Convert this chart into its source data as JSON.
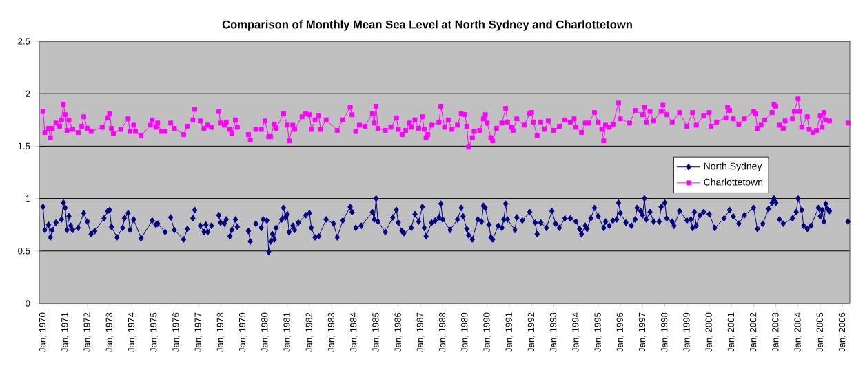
{
  "chart_data": {
    "type": "line",
    "title": "Comparison of Monthly Mean Sea Level at North Sydney and Charlottetown",
    "xlim": [
      "1969-11",
      "2006-05"
    ],
    "ylim": [
      0,
      2.5
    ],
    "yticks": [
      0,
      0.5,
      1,
      1.5,
      2,
      2.5
    ],
    "xticks": [
      {
        "value": "1970-01",
        "label": "Jan, 1970"
      },
      {
        "value": "1971-01",
        "label": "Jan, 1971"
      },
      {
        "value": "1972-01",
        "label": "Jan, 1972"
      },
      {
        "value": "1973-01",
        "label": "Jan, 1973"
      },
      {
        "value": "1974-01",
        "label": "Jan, 1974"
      },
      {
        "value": "1975-01",
        "label": "Jan, 1975"
      },
      {
        "value": "1976-01",
        "label": "Jan, 1976"
      },
      {
        "value": "1977-01",
        "label": "Jan, 1977"
      },
      {
        "value": "1978-01",
        "label": "Jan, 1978"
      },
      {
        "value": "1979-01",
        "label": "Jan, 1979"
      },
      {
        "value": "1980-01",
        "label": "Jan, 1980"
      },
      {
        "value": "1981-01",
        "label": "Jan, 1981"
      },
      {
        "value": "1982-01",
        "label": "Jan, 1982"
      },
      {
        "value": "1983-01",
        "label": "Jan, 1983"
      },
      {
        "value": "1984-01",
        "label": "Jan, 1984"
      },
      {
        "value": "1985-01",
        "label": "Jan, 1985"
      },
      {
        "value": "1986-01",
        "label": "Jan, 1986"
      },
      {
        "value": "1987-01",
        "label": "Jan, 1987"
      },
      {
        "value": "1988-01",
        "label": "Jan, 1988"
      },
      {
        "value": "1989-01",
        "label": "Jan, 1989"
      },
      {
        "value": "1990-01",
        "label": "Jan, 1990"
      },
      {
        "value": "1991-01",
        "label": "Jan, 1991"
      },
      {
        "value": "1992-01",
        "label": "Jan, 1992"
      },
      {
        "value": "1993-01",
        "label": "Jan, 1993"
      },
      {
        "value": "1994-01",
        "label": "Jan, 1994"
      },
      {
        "value": "1995-01",
        "label": "Jan, 1995"
      },
      {
        "value": "1996-01",
        "label": "Jan, 1996"
      },
      {
        "value": "1997-01",
        "label": "Jan, 1997"
      },
      {
        "value": "1998-01",
        "label": "Jan, 1998"
      },
      {
        "value": "1999-01",
        "label": "Jan, 1999"
      },
      {
        "value": "2000-01",
        "label": "Jan, 2000"
      },
      {
        "value": "2001-01",
        "label": "Jan, 2001"
      },
      {
        "value": "2002-01",
        "label": "Jan, 2002"
      },
      {
        "value": "2003-01",
        "label": "Jan, 2003"
      },
      {
        "value": "2004-01",
        "label": "Jan, 2004"
      },
      {
        "value": "2005-01",
        "label": "Jan, 2005"
      },
      {
        "value": "2006-01",
        "label": "Jan, 2006"
      }
    ],
    "grid": "y",
    "legend": "right",
    "series": [
      {
        "name": "North Sydney",
        "color": "#000080",
        "marker": "diamond",
        "x": [
          "1970-01",
          "1970-02",
          "1970-04",
          "1970-05",
          "1970-06",
          "1970-08",
          "1970-11",
          "1970-12",
          "1971-01",
          "1971-02",
          "1971-03",
          "1971-04",
          "1971-05",
          "1971-08",
          "1971-11",
          "1972-01",
          "1972-03",
          "1972-05",
          "1972-10",
          "1972-12",
          "1973-01",
          "1973-02",
          "1973-05",
          "1973-08",
          "1973-09",
          "1973-11",
          "1973-12",
          "1974-02",
          "1974-06",
          "1974-12",
          "1975-02",
          "1975-03",
          "1975-07",
          "1975-08",
          "1975-10",
          "1975-12",
          "1976-05",
          "1976-07",
          "1976-08",
          "1976-10",
          "1976-11",
          "1976-12",
          "1977-02",
          "1977-04",
          "1977-05",
          "1977-06",
          "1977-08",
          "1977-10",
          "1977-12",
          "1978-01",
          "1978-03",
          "1978-04",
          "1978-05",
          "1978-06",
          "1978-07",
          "1978-09",
          "1978-10",
          "1979-01",
          "1979-04",
          "1979-05",
          "1979-07",
          "1979-08",
          "1979-11",
          "1979-12",
          "1980-02",
          "1980-03",
          "1980-04",
          "1980-05",
          "1980-06",
          "1980-07",
          "1980-10",
          "1980-11",
          "1980-12",
          "1981-01",
          "1981-02",
          "1981-04",
          "1981-05",
          "1981-07",
          "1981-11",
          "1982-01",
          "1982-02",
          "1982-04",
          "1982-06",
          "1982-10",
          "1983-02",
          "1983-04",
          "1983-07",
          "1983-11",
          "1983-12",
          "1984-01",
          "1984-02",
          "1984-05",
          "1984-11",
          "1984-12",
          "1985-01",
          "1985-02",
          "1985-06",
          "1985-10",
          "1985-12",
          "1986-01",
          "1986-03",
          "1986-04",
          "1986-08",
          "1986-10",
          "1986-12",
          "1987-02",
          "1987-03",
          "1987-04",
          "1987-07",
          "1987-09",
          "1987-11",
          "1987-12",
          "1988-01",
          "1988-05",
          "1988-09",
          "1988-11",
          "1988-12",
          "1989-02",
          "1989-03",
          "1989-05",
          "1989-08",
          "1989-10",
          "1989-11",
          "1989-12",
          "1990-02",
          "1990-03",
          "1990-04",
          "1990-07",
          "1990-09",
          "1990-10",
          "1990-11",
          "1990-12",
          "1991-04",
          "1991-05",
          "1991-08",
          "1991-12",
          "1992-03",
          "1992-04",
          "1992-05",
          "1992-06",
          "1992-09",
          "1992-12",
          "1993-02",
          "1993-04",
          "1993-07",
          "1993-10",
          "1994-01",
          "1994-03",
          "1994-04",
          "1994-06",
          "1994-07",
          "1994-09",
          "1994-11",
          "1995-01",
          "1995-04",
          "1995-05",
          "1995-07",
          "1995-09",
          "1995-11",
          "1995-12",
          "1996-01",
          "1996-04",
          "1996-07",
          "1996-09",
          "1996-10",
          "1996-12",
          "1997-01",
          "1997-02",
          "1997-03",
          "1997-05",
          "1997-07",
          "1997-10",
          "1997-11",
          "1998-01",
          "1998-02",
          "1998-05",
          "1998-06",
          "1998-09",
          "1999-01",
          "1999-03",
          "1999-04",
          "1999-05",
          "1999-06",
          "1999-08",
          "1999-10",
          "2000-01",
          "2000-04",
          "2000-09",
          "2000-12",
          "2001-01",
          "2001-02",
          "2001-05",
          "2001-08",
          "2002-01",
          "2002-03",
          "2002-06",
          "2002-09",
          "2002-11",
          "2002-12",
          "2003-01",
          "2003-02",
          "2003-03",
          "2003-05",
          "2003-10",
          "2003-12",
          "2004-01",
          "2004-03",
          "2004-04",
          "2004-06",
          "2004-08",
          "2004-12",
          "2005-01",
          "2005-02",
          "2005-03",
          "2005-04",
          "2005-05",
          "2005-06",
          "2005-07",
          "2006-04"
        ],
        "values": [
          0.92,
          0.7,
          0.75,
          0.63,
          0.7,
          0.77,
          0.8,
          0.96,
          0.91,
          0.7,
          0.83,
          0.74,
          0.7,
          0.72,
          0.86,
          0.78,
          0.66,
          0.69,
          0.81,
          0.88,
          0.89,
          0.73,
          0.63,
          0.72,
          0.81,
          0.86,
          0.7,
          0.8,
          0.62,
          0.79,
          0.75,
          0.76,
          0.68,
          null,
          0.82,
          0.7,
          0.61,
          0.71,
          null,
          0.81,
          0.89,
          null,
          0.74,
          0.68,
          0.75,
          0.68,
          0.74,
          null,
          0.84,
          0.77,
          0.76,
          0.8,
          null,
          0.64,
          0.7,
          0.8,
          0.73,
          null,
          0.69,
          0.59,
          null,
          0.76,
          0.72,
          0.8,
          0.79,
          0.49,
          0.59,
          0.66,
          0.61,
          0.72,
          0.8,
          0.91,
          0.82,
          0.85,
          0.68,
          0.74,
          0.7,
          0.77,
          0.84,
          0.86,
          0.72,
          0.63,
          0.64,
          0.8,
          0.76,
          0.63,
          0.79,
          0.92,
          0.87,
          null,
          0.72,
          0.74,
          0.87,
          0.8,
          1.0,
          0.78,
          0.68,
          0.82,
          0.89,
          0.77,
          0.69,
          0.67,
          0.72,
          0.85,
          0.78,
          0.92,
          0.72,
          0.64,
          0.77,
          0.79,
          0.82,
          0.95,
          0.8,
          0.7,
          0.8,
          0.91,
          0.83,
          0.71,
          0.65,
          0.61,
          0.8,
          0.78,
          0.93,
          0.91,
          0.75,
          0.63,
          0.61,
          0.74,
          0.72,
          0.8,
          0.95,
          0.8,
          0.7,
          0.82,
          0.79,
          0.87,
          0.77,
          0.66,
          null,
          0.77,
          0.72,
          0.88,
          0.76,
          0.72,
          0.81,
          0.81,
          0.78,
          0.71,
          0.66,
          0.74,
          0.71,
          0.81,
          0.91,
          0.83,
          0.72,
          0.78,
          0.74,
          0.79,
          0.8,
          0.96,
          0.86,
          0.77,
          0.74,
          0.8,
          0.91,
          0.88,
          0.84,
          1.0,
          0.8,
          0.87,
          0.78,
          0.78,
          0.92,
          0.96,
          0.81,
          0.78,
          0.74,
          0.88,
          0.79,
          0.8,
          0.72,
          0.87,
          0.74,
          0.84,
          0.87,
          0.85,
          0.72,
          0.81,
          0.89,
          null,
          0.83,
          0.76,
          0.84,
          0.91,
          0.71,
          0.76,
          0.9,
          0.96,
          1.0,
          0.96,
          null,
          0.8,
          0.76,
          0.81,
          0.87,
          1.0,
          0.89,
          0.74,
          0.71,
          0.74,
          0.91,
          0.83,
          0.89,
          0.78,
          0.95,
          0.9,
          0.88,
          null,
          0.78
        ]
      },
      {
        "name": "Charlottetown",
        "color": "#ff00ff",
        "marker": "square",
        "x": [
          "1970-01",
          "1970-02",
          "1970-04",
          "1970-05",
          "1970-06",
          "1970-08",
          "1970-10",
          "1970-11",
          "1970-12",
          "1971-01",
          "1971-02",
          "1971-03",
          "1971-05",
          "1971-08",
          "1971-10",
          "1971-11",
          "1972-01",
          "1972-03",
          "1972-09",
          "1972-12",
          "1973-01",
          "1973-02",
          "1973-03",
          "1973-07",
          "1973-11",
          "1973-12",
          "1974-02",
          "1974-03",
          "1974-06",
          "1974-11",
          "1974-12",
          "1975-02",
          "1975-03",
          "1975-05",
          "1975-07",
          "1975-08",
          "1975-10",
          "1975-12",
          "1976-05",
          "1976-07",
          "1976-08",
          "1976-10",
          "1976-11",
          "1976-12",
          "1977-02",
          "1977-04",
          "1977-06",
          "1977-08",
          "1977-10",
          "1977-12",
          "1978-01",
          "1978-03",
          "1978-04",
          "1978-05",
          "1978-06",
          "1978-07",
          "1978-09",
          "1978-10",
          "1979-01",
          "1979-04",
          "1979-05",
          "1979-07",
          "1979-08",
          "1979-11",
          "1980-01",
          "1980-03",
          "1980-04",
          "1980-06",
          "1980-07",
          "1980-11",
          "1981-01",
          "1981-02",
          "1981-04",
          "1981-05",
          "1981-09",
          "1981-11",
          "1982-01",
          "1982-02",
          "1982-04",
          "1982-06",
          "1982-07",
          "1982-10",
          "1983-04",
          "1983-07",
          "1983-11",
          "1983-12",
          "1984-01",
          "1984-02",
          "1984-04",
          "1984-07",
          "1984-11",
          "1984-12",
          "1985-01",
          "1985-02",
          "1985-06",
          "1985-09",
          "1985-12",
          "1986-01",
          "1986-03",
          "1986-05",
          "1986-07",
          "1986-08",
          "1986-10",
          "1986-12",
          "1987-02",
          "1987-03",
          "1987-04",
          "1987-05",
          "1987-07",
          "1987-11",
          "1987-12",
          "1988-02",
          "1988-04",
          "1988-06",
          "1988-09",
          "1988-11",
          "1989-01",
          "1989-02",
          "1989-03",
          "1989-05",
          "1989-06",
          "1989-09",
          "1989-11",
          "1989-12",
          "1990-01",
          "1990-03",
          "1990-04",
          "1990-06",
          "1990-09",
          "1990-11",
          "1990-12",
          "1991-02",
          "1991-03",
          "1991-05",
          "1991-09",
          "1991-12",
          "1992-01",
          "1992-02",
          "1992-04",
          "1992-05",
          "1992-06",
          "1992-08",
          "1992-10",
          "1993-01",
          "1993-04",
          "1993-07",
          "1993-10",
          "1993-12",
          "1994-01",
          "1994-04",
          "1994-06",
          "1994-08",
          "1994-11",
          "1995-01",
          "1995-03",
          "1995-04",
          "1995-05",
          "1995-07",
          "1995-09",
          "1995-12",
          "1996-01",
          "1996-06",
          "1996-09",
          "1997-01",
          "1997-02",
          "1997-03",
          "1997-05",
          "1997-07",
          "1997-11",
          "1997-12",
          "1998-02",
          "1998-05",
          "1998-09",
          "1999-01",
          "1999-04",
          "1999-06",
          "1999-10",
          "2000-01",
          "2000-02",
          "2000-05",
          "2000-10",
          "2000-11",
          "2000-12",
          "2001-01",
          "2001-02",
          "2001-05",
          "2001-08",
          "2002-01",
          "2002-02",
          "2002-03",
          "2002-05",
          "2002-07",
          "2002-11",
          "2002-12",
          "2003-01",
          "2003-02",
          "2003-03",
          "2003-05",
          "2003-06",
          "2003-10",
          "2003-11",
          "2004-01",
          "2004-02",
          "2004-03",
          "2004-06",
          "2004-07",
          "2004-09",
          "2004-11",
          "2005-01",
          "2005-02",
          "2005-03",
          "2005-04",
          "2005-06",
          "2005-07",
          "2006-04"
        ],
        "values": [
          1.83,
          1.63,
          1.67,
          1.58,
          1.67,
          1.72,
          1.69,
          1.75,
          1.9,
          1.8,
          1.65,
          1.75,
          1.66,
          1.63,
          1.69,
          1.78,
          1.67,
          1.64,
          1.68,
          1.77,
          1.81,
          1.67,
          1.62,
          1.66,
          1.76,
          1.64,
          1.7,
          1.64,
          1.6,
          1.7,
          1.75,
          1.68,
          1.72,
          1.64,
          1.64,
          null,
          1.72,
          1.67,
          1.61,
          1.69,
          null,
          1.75,
          1.85,
          null,
          1.74,
          1.67,
          1.7,
          1.68,
          null,
          1.83,
          1.72,
          1.7,
          1.73,
          null,
          1.66,
          1.62,
          1.75,
          1.68,
          null,
          1.61,
          1.56,
          null,
          1.66,
          1.66,
          1.74,
          1.59,
          1.59,
          1.71,
          1.67,
          1.81,
          1.7,
          1.55,
          1.7,
          1.66,
          1.78,
          1.81,
          1.8,
          1.66,
          1.75,
          1.79,
          1.66,
          1.75,
          1.65,
          1.75,
          1.87,
          1.8,
          null,
          1.64,
          1.7,
          1.69,
          1.81,
          1.72,
          1.88,
          1.67,
          1.65,
          1.68,
          1.77,
          1.66,
          1.61,
          1.65,
          1.72,
          1.68,
          1.75,
          1.67,
          1.78,
          1.66,
          1.58,
          1.61,
          1.7,
          1.73,
          1.88,
          1.68,
          1.75,
          1.66,
          1.7,
          1.81,
          1.8,
          1.69,
          1.49,
          1.58,
          1.64,
          1.65,
          1.76,
          1.8,
          1.72,
          1.58,
          1.55,
          1.67,
          1.72,
          1.86,
          1.73,
          1.68,
          1.65,
          1.76,
          1.7,
          1.81,
          1.82,
          1.73,
          1.6,
          null,
          1.73,
          1.66,
          1.74,
          1.65,
          1.69,
          1.75,
          1.73,
          1.76,
          1.68,
          1.63,
          1.72,
          1.72,
          1.82,
          1.73,
          1.66,
          1.55,
          1.7,
          1.68,
          1.71,
          1.91,
          1.76,
          1.72,
          1.84,
          1.8,
          1.87,
          1.73,
          1.83,
          1.74,
          1.83,
          1.89,
          1.8,
          1.73,
          1.82,
          1.69,
          1.82,
          1.7,
          1.79,
          1.82,
          1.69,
          1.73,
          1.77,
          1.87,
          1.84,
          null,
          1.76,
          1.71,
          1.76,
          1.83,
          1.81,
          1.67,
          1.7,
          1.75,
          1.82,
          1.9,
          1.88,
          null,
          1.7,
          1.67,
          1.74,
          1.76,
          1.83,
          1.95,
          1.83,
          1.68,
          1.78,
          1.66,
          1.63,
          1.65,
          1.79,
          1.68,
          1.82,
          1.75,
          1.74,
          null,
          1.72
        ]
      }
    ]
  }
}
